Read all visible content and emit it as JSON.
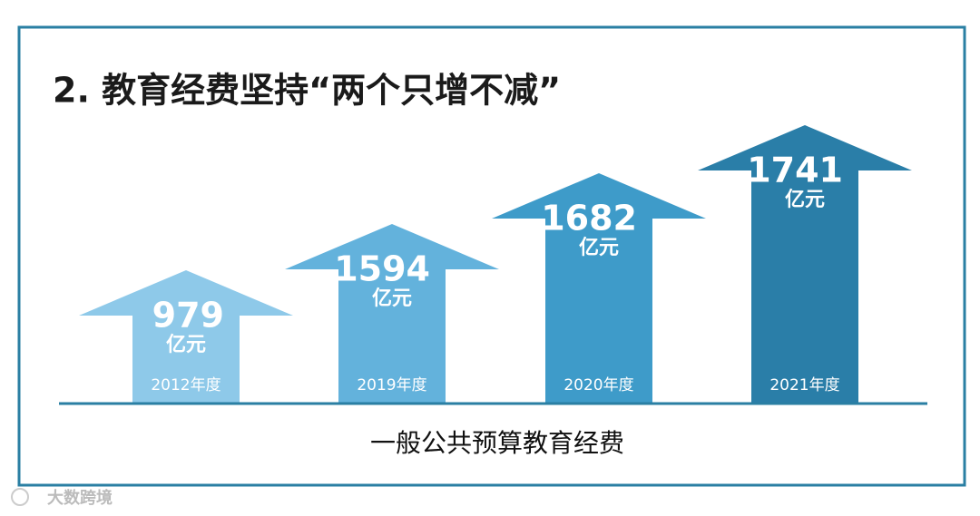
{
  "title": "2. 教育经费坚持“两个只增不减”",
  "items": [
    {
      "value": 979,
      "unit": "亿元",
      "year": "2012年度"
    },
    {
      "value": 1594,
      "unit": "亿元",
      "year": "2019年度"
    },
    {
      "value": 1682,
      "unit": "亿元",
      "year": "2020年度"
    },
    {
      "value": 1741,
      "unit": "亿元",
      "year": "2021年度"
    }
  ],
  "caption": "一般公共预算教育经费",
  "watermark": "大数跨境"
}
